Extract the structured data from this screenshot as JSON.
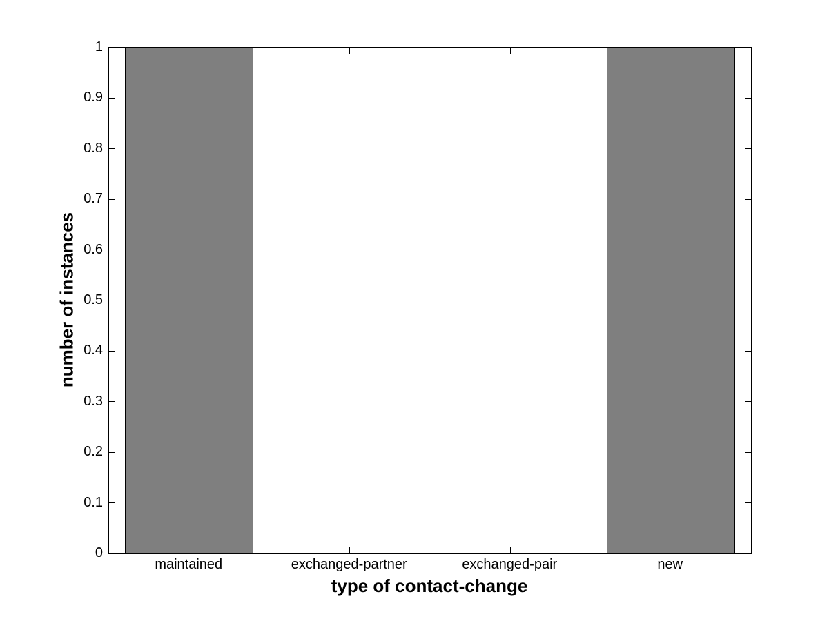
{
  "chart_data": {
    "type": "bar",
    "title": "",
    "categories": [
      "maintained",
      "exchanged-partner",
      "exchanged-pair",
      "new"
    ],
    "values": [
      1,
      0,
      0,
      1
    ],
    "xlabel": "type of contact-change",
    "ylabel": "number of instances",
    "ylim": [
      0,
      1
    ],
    "ytick_values": [
      0,
      0.1,
      0.2,
      0.3,
      0.4,
      0.5,
      0.6,
      0.7,
      0.8,
      0.9,
      1
    ],
    "ytick_labels": [
      "0",
      "0.1",
      "0.2",
      "0.3",
      "0.4",
      "0.5",
      "0.6",
      "0.7",
      "0.8",
      "0.9",
      "1"
    ],
    "bar_width_fraction": 0.8,
    "bar_face_color": "#7f7f7f",
    "bar_edge_color": "#000000",
    "axis_color": "#000000",
    "background_color": "#ffffff",
    "grid": false,
    "legend": "none",
    "tick_direction": "in",
    "box": true
  }
}
